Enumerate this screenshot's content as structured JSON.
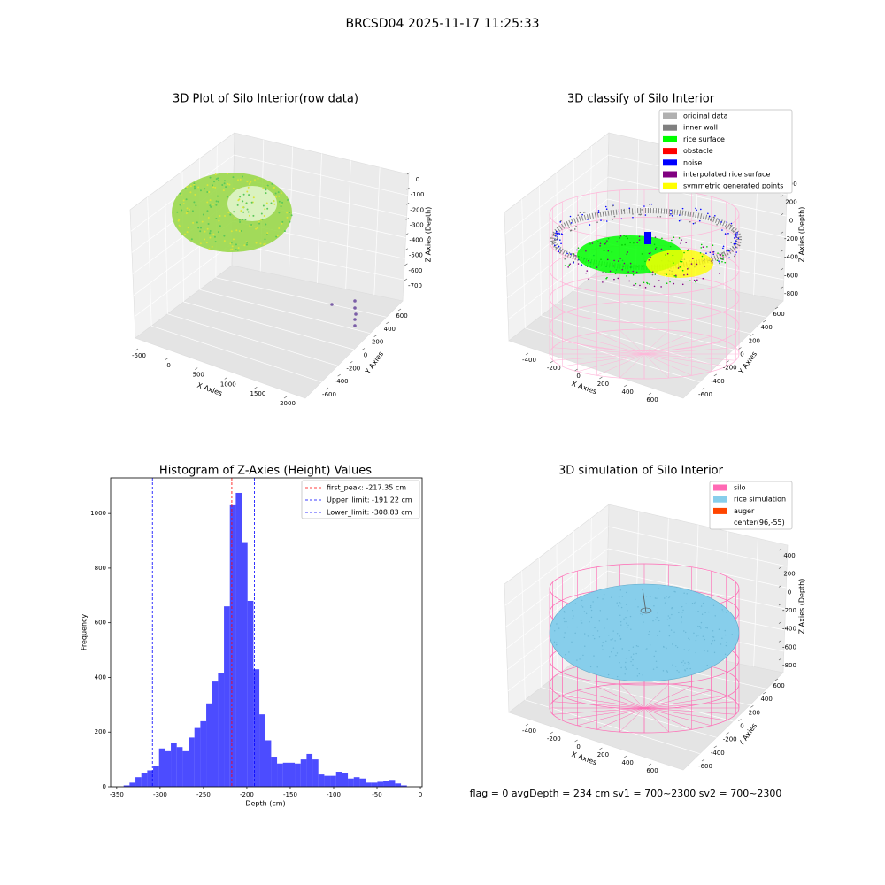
{
  "suptitle": "BRCSD04 2025-11-17 11:25:33",
  "status_text": "flag = 0     avgDepth = 234 cm  sv1 = 700~2300  sv2 = 700~2300",
  "chart_data": [
    {
      "type": "scatter3d",
      "title": "3D Plot of Silo Interior(row data)",
      "xlabel": "X Axies",
      "ylabel": "Y Axies",
      "zlabel": "Z Axies (Depth)",
      "xticks": [
        -500,
        0,
        500,
        1000,
        1500,
        2000
      ],
      "yticks": [
        -600,
        -400,
        -200,
        0,
        200,
        400,
        600
      ],
      "zticks": [
        0,
        -100,
        -200,
        -300,
        -400,
        -500,
        -600,
        -700
      ]
    },
    {
      "type": "scatter3d",
      "title": "3D classify of Silo Interior",
      "xlabel": "X Axies",
      "ylabel": "Y Axies",
      "zlabel": "Z Axies (Depth)",
      "xticks": [
        -400,
        -200,
        0,
        200,
        400,
        600
      ],
      "yticks": [
        -600,
        -400,
        -200,
        0,
        200,
        400,
        600
      ],
      "zticks": [
        400,
        200,
        0,
        -200,
        -400,
        -600,
        -800
      ],
      "series": [
        {
          "name": "original data",
          "color": "#b0b0b0"
        },
        {
          "name": "inner wall",
          "color": "#808080"
        },
        {
          "name": "rice surface",
          "color": "#00ff00"
        },
        {
          "name": "obstacle",
          "color": "#ff0000"
        },
        {
          "name": "noise",
          "color": "#0000ff"
        },
        {
          "name": "interpolated rice surface",
          "color": "#800080"
        },
        {
          "name": "symmetric generated points",
          "color": "#ffff00"
        }
      ]
    },
    {
      "type": "histogram",
      "title": "Histogram of Z-Axies (Height) Values",
      "xlabel": "Depth (cm)",
      "ylabel": "Frequency",
      "color": "#0000ff",
      "bins": [
        -342,
        -335.2,
        -328.4,
        -321.6,
        -314.8,
        -308,
        -301.2,
        -294.4,
        -287.6,
        -280.8,
        -274,
        -267.2,
        -260.4,
        -253.6,
        -246.8,
        -240,
        -233.2,
        -226.4,
        -219.6,
        -212.8,
        -206,
        -199.2,
        -192.4,
        -185.6,
        -178.8,
        -172,
        -165.2,
        -158.4,
        -151.6,
        -144.8,
        -138,
        -131.2,
        -124.4,
        -117.6,
        -110.8,
        -104,
        -97.2,
        -90.4,
        -83.6,
        -76.8,
        -70,
        -63.2,
        -56.4,
        -49.6,
        -42.8,
        -36,
        -29.2,
        -22.4,
        -15.6
      ],
      "counts": [
        5,
        15,
        35,
        50,
        60,
        75,
        140,
        130,
        160,
        145,
        130,
        180,
        215,
        240,
        305,
        385,
        415,
        660,
        1030,
        1075,
        895,
        680,
        430,
        265,
        170,
        110,
        85,
        88,
        88,
        85,
        100,
        120,
        100,
        45,
        40,
        40,
        55,
        50,
        30,
        35,
        30,
        15,
        15,
        18,
        20,
        25,
        12,
        5
      ],
      "xlim": [
        -357,
        2
      ],
      "ylim": [
        0,
        1130
      ],
      "xticks": [
        -350,
        -300,
        -250,
        -200,
        -150,
        -100,
        -50,
        0
      ],
      "yticks": [
        0,
        200,
        400,
        600,
        800,
        1000
      ],
      "vlines": [
        {
          "name": "first_peak: -217.35 cm",
          "value": -217.35,
          "color": "#ff0000"
        },
        {
          "name": "Upper_limit: -191.22 cm",
          "value": -191.22,
          "color": "#0000ff"
        },
        {
          "name": "Lower_limit: -308.83 cm",
          "value": -308.83,
          "color": "#0000ff"
        }
      ]
    },
    {
      "type": "scatter3d",
      "title": "3D simulation of Silo Interior",
      "xlabel": "X Axies",
      "ylabel": "Y Axies",
      "zlabel": "Z Axies (Depth)",
      "xticks": [
        -400,
        -200,
        0,
        200,
        400,
        600
      ],
      "yticks": [
        -600,
        -400,
        -200,
        0,
        200,
        400,
        600
      ],
      "zticks": [
        400,
        200,
        0,
        -200,
        -400,
        -600,
        -800
      ],
      "series": [
        {
          "name": "silo",
          "color": "#ff69b4"
        },
        {
          "name": "rice simulation",
          "color": "#87ceeb"
        },
        {
          "name": "auger",
          "color": "#ff4500"
        },
        {
          "name": "center(96,-55)"
        }
      ]
    }
  ]
}
